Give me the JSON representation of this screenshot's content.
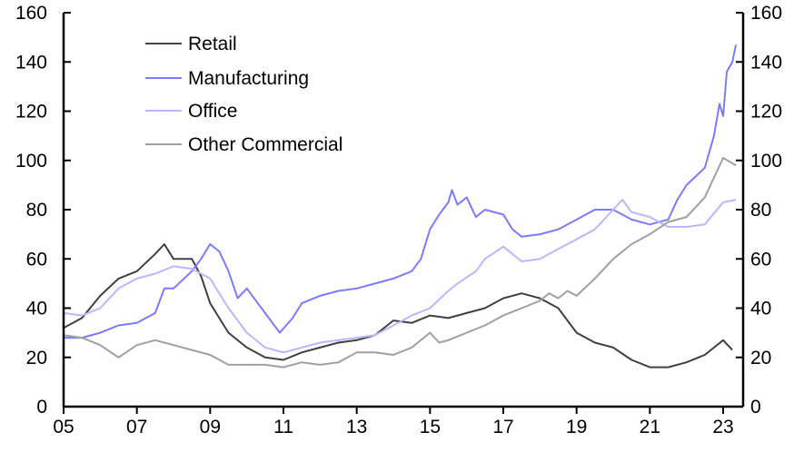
{
  "chart_data": {
    "type": "line",
    "title": "",
    "xlabel": "",
    "ylabel": "",
    "xlim": [
      2005,
      2023.5
    ],
    "ylim": [
      0,
      160
    ],
    "y2lim": [
      0,
      160
    ],
    "x_ticks": [
      2005,
      2007,
      2009,
      2011,
      2013,
      2015,
      2017,
      2019,
      2021,
      2023
    ],
    "x_tick_labels": [
      "05",
      "07",
      "09",
      "11",
      "13",
      "15",
      "17",
      "19",
      "21",
      "23"
    ],
    "y_ticks": [
      0,
      20,
      40,
      60,
      80,
      100,
      120,
      140,
      160
    ],
    "y_tick_labels": [
      "0",
      "20",
      "40",
      "60",
      "80",
      "100",
      "120",
      "140",
      "160"
    ],
    "grid": false,
    "legend_position": "top-left",
    "series": [
      {
        "name": "Retail",
        "color": "#404040",
        "x": [
          2005,
          2005.5,
          2006,
          2006.5,
          2007,
          2007.5,
          2007.75,
          2008,
          2008.5,
          2008.75,
          2009,
          2009.5,
          2010,
          2010.5,
          2011,
          2011.5,
          2012,
          2012.5,
          2013,
          2013.5,
          2014,
          2014.5,
          2015,
          2015.5,
          2016,
          2016.5,
          2017,
          2017.5,
          2018,
          2018.5,
          2019,
          2019.5,
          2020,
          2020.5,
          2021,
          2021.5,
          2022,
          2022.5,
          2023,
          2023.25
        ],
        "y": [
          32,
          36,
          45,
          52,
          55,
          62,
          66,
          60,
          60,
          53,
          42,
          30,
          24,
          20,
          19,
          22,
          24,
          26,
          27,
          29,
          35,
          34,
          37,
          36,
          38,
          40,
          44,
          46,
          44,
          40,
          30,
          26,
          24,
          19,
          16,
          16,
          18,
          21,
          27,
          23
        ]
      },
      {
        "name": "Manufacturing",
        "color": "#7b7bff",
        "x": [
          2005,
          2005.5,
          2006,
          2006.5,
          2007,
          2007.5,
          2007.75,
          2008,
          2008.5,
          2008.75,
          2009,
          2009.25,
          2009.5,
          2009.75,
          2010,
          2010.5,
          2010.9,
          2011.25,
          2011.5,
          2012,
          2012.5,
          2013,
          2013.5,
          2014,
          2014.5,
          2014.75,
          2015,
          2015.25,
          2015.5,
          2015.6,
          2015.75,
          2016,
          2016.25,
          2016.5,
          2017,
          2017.25,
          2017.5,
          2018,
          2018.5,
          2019,
          2019.5,
          2020,
          2020.5,
          2021,
          2021.5,
          2021.75,
          2022,
          2022.5,
          2022.75,
          2022.9,
          2023,
          2023.1,
          2023.25,
          2023.35
        ],
        "y": [
          28,
          28,
          30,
          33,
          34,
          38,
          48,
          48,
          55,
          60,
          66,
          63,
          55,
          44,
          48,
          38,
          30,
          36,
          42,
          45,
          47,
          48,
          50,
          52,
          55,
          60,
          72,
          78,
          83,
          88,
          82,
          85,
          77,
          80,
          78,
          72,
          69,
          70,
          72,
          76,
          80,
          80,
          76,
          74,
          76,
          84,
          90,
          97,
          110,
          123,
          118,
          136,
          140,
          147
        ]
      },
      {
        "name": "Office",
        "color": "#b8b8ff",
        "x": [
          2005,
          2005.5,
          2006,
          2006.5,
          2007,
          2007.5,
          2008,
          2008.5,
          2009,
          2009.5,
          2010,
          2010.5,
          2011,
          2011.5,
          2012,
          2012.5,
          2013,
          2013.5,
          2014,
          2014.5,
          2015,
          2015.5,
          2015.75,
          2016.25,
          2016.5,
          2017,
          2017.5,
          2018,
          2018.5,
          2019,
          2019.5,
          2020,
          2020.25,
          2020.5,
          2021,
          2021.5,
          2022,
          2022.5,
          2023,
          2023.35
        ],
        "y": [
          38,
          37,
          40,
          48,
          52,
          54,
          57,
          56,
          52,
          40,
          30,
          24,
          22,
          24,
          26,
          27,
          28,
          29,
          33,
          37,
          40,
          47,
          50,
          55,
          60,
          65,
          59,
          60,
          64,
          68,
          72,
          80,
          84,
          79,
          77,
          73,
          73,
          74,
          83,
          84
        ]
      },
      {
        "name": "Other Commercial",
        "color": "#a0a0a0",
        "x": [
          2005,
          2005.5,
          2006,
          2006.5,
          2007,
          2007.5,
          2008,
          2008.5,
          2009,
          2009.5,
          2010,
          2010.5,
          2011,
          2011.5,
          2012,
          2012.5,
          2013,
          2013.5,
          2014,
          2014.5,
          2015,
          2015.25,
          2015.5,
          2016,
          2016.5,
          2017,
          2017.5,
          2018,
          2018.25,
          2018.5,
          2018.75,
          2019,
          2019.5,
          2020,
          2020.5,
          2021,
          2021.5,
          2022,
          2022.5,
          2023,
          2023.35
        ],
        "y": [
          29,
          28,
          25,
          20,
          25,
          27,
          25,
          23,
          21,
          17,
          17,
          17,
          16,
          18,
          17,
          18,
          22,
          22,
          21,
          24,
          30,
          26,
          27,
          30,
          33,
          37,
          40,
          43,
          46,
          44,
          47,
          45,
          52,
          60,
          66,
          70,
          75,
          77,
          85,
          101,
          98
        ]
      }
    ]
  }
}
